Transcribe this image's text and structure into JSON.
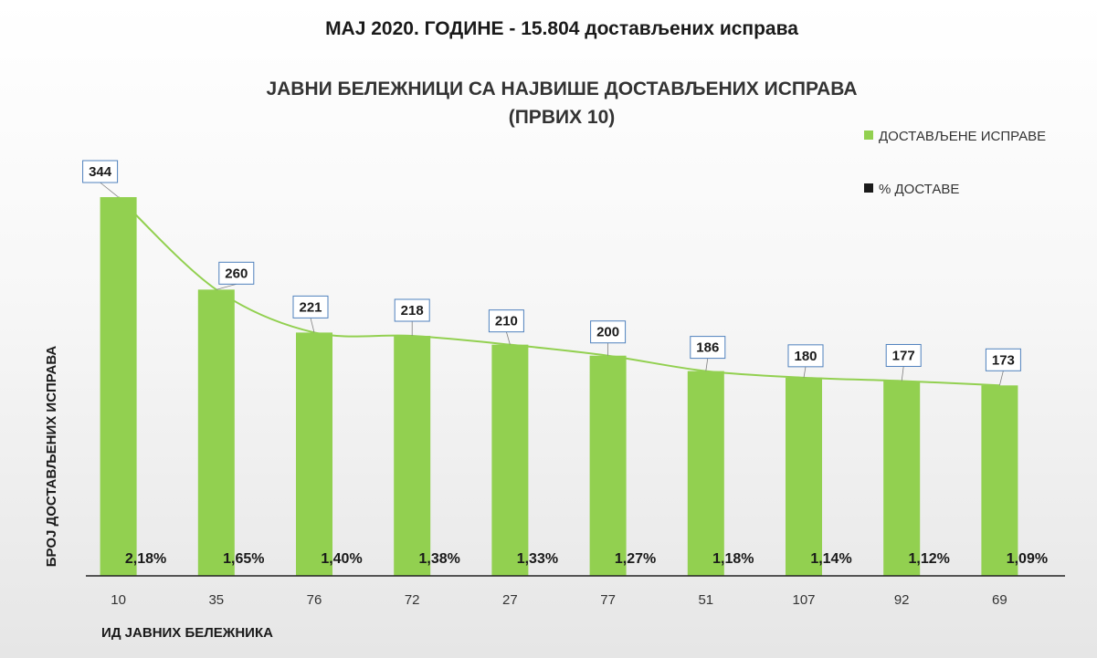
{
  "chart_data": {
    "type": "bar",
    "title": "МАЈ 2020. ГОДИНЕ - 15.804 достављених исправа",
    "subtitle_line1": "ЈАВНИ БЕЛЕЖНИЦИ СА НАЈВИШЕ ДОСТАВЉЕНИХ ИСПРАВА",
    "subtitle_line2": "(ПРВИХ 10)",
    "xlabel": "ИД ЈАВНИХ БЕЛЕЖНИКА",
    "ylabel": "БРОЈ ДОСТАВЉЕНИХ ИСПРАВА",
    "categories": [
      "10",
      "35",
      "76",
      "72",
      "27",
      "77",
      "51",
      "107",
      "92",
      "69"
    ],
    "series": [
      {
        "name": "ДОСТАВЉЕНЕ ИСПРАВЕ",
        "values": [
          344,
          260,
          221,
          218,
          210,
          200,
          186,
          180,
          177,
          173
        ],
        "color": "#92d050"
      },
      {
        "name": "% ДОСТАВЕ",
        "values": [
          2.18,
          1.65,
          1.4,
          1.38,
          1.33,
          1.27,
          1.18,
          1.14,
          1.12,
          1.09
        ],
        "labels": [
          "2,18%",
          "1,65%",
          "1,40%",
          "1,38%",
          "1,33%",
          "1,27%",
          "1,18%",
          "1,14%",
          "1,12%",
          "1,09%"
        ],
        "color": "#1a1a1a"
      }
    ],
    "ylim": [
      0,
      360
    ],
    "grid": false,
    "legend_position": "top-right",
    "trendline_color": "#92d050"
  }
}
